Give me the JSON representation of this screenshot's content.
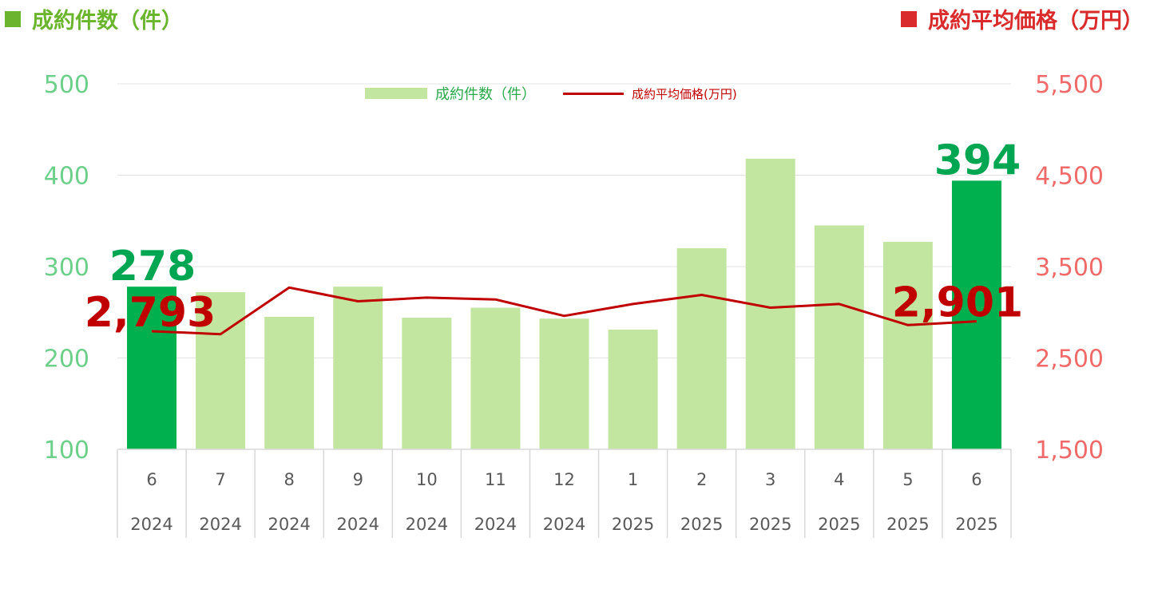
{
  "headers": {
    "left": "成約件数（件）",
    "right": "成約平均価格（万円）"
  },
  "legend": {
    "bar": "成約件数（件）",
    "line": "成約平均価格(万円)"
  },
  "colors": {
    "bar_normal": "#c2e5a0",
    "bar_highlight": "#00b04f",
    "line": "#c00000",
    "left_axis": "#6cd08a",
    "right_axis": "#f06a6a",
    "highlight_count_label": "#00a651",
    "highlight_price_label": "#c00000"
  },
  "chart_data": {
    "type": "bar",
    "categories": [
      "6\n2024",
      "7\n2024",
      "8\n2024",
      "9\n2024",
      "10\n2024",
      "11\n2024",
      "12\n2024",
      "1\n2025",
      "2\n2025",
      "3\n2025",
      "4\n2025",
      "5\n2025",
      "6\n2025"
    ],
    "x_month": [
      "6",
      "7",
      "8",
      "9",
      "10",
      "11",
      "12",
      "1",
      "2",
      "3",
      "4",
      "5",
      "6"
    ],
    "x_year": [
      "2024",
      "2024",
      "2024",
      "2024",
      "2024",
      "2024",
      "2024",
      "2025",
      "2025",
      "2025",
      "2025",
      "2025",
      "2025"
    ],
    "series": [
      {
        "name": "成約件数（件）",
        "type": "bar",
        "axis": "left",
        "values": [
          278,
          272,
          245,
          278,
          244,
          255,
          243,
          231,
          320,
          418,
          345,
          327,
          394
        ],
        "highlight_indices": [
          0,
          12
        ]
      },
      {
        "name": "成約平均価格(万円)",
        "type": "line",
        "axis": "right",
        "values": [
          2793,
          2760,
          3270,
          3120,
          3160,
          3140,
          2960,
          3090,
          3190,
          3050,
          3090,
          2860,
          2901
        ]
      }
    ],
    "ylim_left": [
      100,
      500
    ],
    "yticks_left": [
      "100",
      "200",
      "300",
      "400",
      "500"
    ],
    "ylim_right": [
      1500,
      5500
    ],
    "yticks_right": [
      "1,500",
      "2,500",
      "3,500",
      "4,500",
      "5,500"
    ],
    "annotations": [
      {
        "series": 0,
        "index": 0,
        "text": "278"
      },
      {
        "series": 0,
        "index": 12,
        "text": "394"
      },
      {
        "series": 1,
        "index": 0,
        "text": "2,793"
      },
      {
        "series": 1,
        "index": 12,
        "text": "2,901"
      }
    ],
    "grid": true,
    "legend_position": "top-center"
  }
}
